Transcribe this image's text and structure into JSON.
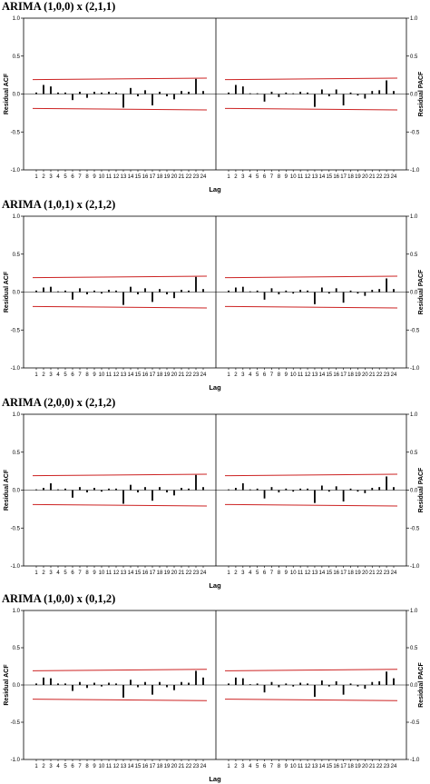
{
  "chart_data": [
    {
      "type": "bar",
      "title": "ARIMA (1,0,0) x (2,1,1)",
      "xlabel": "Lag",
      "ylabel_left": "Residual ACF",
      "ylabel_right": "Residual PACF",
      "ylim": [
        -1.0,
        1.0
      ],
      "yticks": [
        "1.0",
        "0.5",
        "0.0",
        "-0.5",
        "-1.0"
      ],
      "categories": [
        "1",
        "2",
        "3",
        "4",
        "5",
        "6",
        "7",
        "8",
        "9",
        "10",
        "11",
        "12",
        "13",
        "14",
        "15",
        "16",
        "17",
        "18",
        "19",
        "20",
        "21",
        "22",
        "23",
        "24"
      ],
      "series": [
        {
          "values": [
            0.02,
            0.12,
            0.1,
            0.02,
            0.02,
            -0.08,
            0.03,
            -0.05,
            0.03,
            0.02,
            0.03,
            0.02,
            -0.18,
            0.08,
            -0.03,
            0.05,
            -0.15,
            0.03,
            -0.03,
            -0.07,
            0.04,
            0.03,
            0.2,
            0.04
          ]
        },
        {
          "values": [
            0.02,
            0.12,
            0.1,
            0.01,
            0.01,
            -0.1,
            0.03,
            -0.04,
            0.02,
            0.01,
            0.03,
            0.02,
            -0.17,
            0.06,
            -0.03,
            0.06,
            -0.15,
            0.02,
            -0.02,
            -0.06,
            0.04,
            0.05,
            0.18,
            0.04
          ]
        }
      ],
      "confidence_upper": [
        0.19,
        0.21
      ],
      "confidence_lower": [
        -0.19,
        -0.21
      ]
    },
    {
      "type": "bar",
      "title": "ARIMA (1,0,1) x (2,1,2)",
      "xlabel": "Lag",
      "ylabel_left": "Residual ACF",
      "ylabel_right": "Residual PACF",
      "ylim": [
        -1.0,
        1.0
      ],
      "yticks": [
        "1.0",
        "0.5",
        "0.0",
        "-0.5",
        "-1.0"
      ],
      "categories": [
        "1",
        "2",
        "3",
        "4",
        "5",
        "6",
        "7",
        "8",
        "9",
        "10",
        "11",
        "12",
        "13",
        "14",
        "15",
        "16",
        "17",
        "18",
        "19",
        "20",
        "21",
        "22",
        "23",
        "24"
      ],
      "series": [
        {
          "values": [
            0.02,
            0.06,
            0.07,
            0.01,
            0.02,
            -0.1,
            0.05,
            -0.03,
            0.02,
            -0.02,
            0.03,
            0.02,
            -0.17,
            0.07,
            -0.03,
            0.05,
            -0.13,
            0.04,
            -0.03,
            -0.08,
            0.03,
            0.02,
            0.2,
            0.04
          ]
        },
        {
          "values": [
            0.02,
            0.06,
            0.07,
            0.01,
            0.02,
            -0.1,
            0.05,
            -0.03,
            0.02,
            -0.02,
            0.03,
            0.02,
            -0.16,
            0.06,
            -0.02,
            0.05,
            -0.14,
            0.02,
            -0.02,
            -0.05,
            0.03,
            0.04,
            0.18,
            0.04
          ]
        }
      ],
      "confidence_upper": [
        0.19,
        0.21
      ],
      "confidence_lower": [
        -0.19,
        -0.21
      ]
    },
    {
      "type": "bar",
      "title": "ARIMA (2,0,0) x (2,1,2)",
      "xlabel": "Lag",
      "ylabel_left": "Residual ACF",
      "ylabel_right": "Residual PACF",
      "ylim": [
        -1.0,
        1.0
      ],
      "yticks": [
        "1.0",
        "0.5",
        "0.0",
        "-0.5",
        "-1.0"
      ],
      "categories": [
        "1",
        "2",
        "3",
        "4",
        "5",
        "6",
        "7",
        "8",
        "9",
        "10",
        "11",
        "12",
        "13",
        "14",
        "15",
        "16",
        "17",
        "18",
        "19",
        "20",
        "21",
        "22",
        "23",
        "24"
      ],
      "series": [
        {
          "values": [
            0.01,
            0.03,
            0.09,
            0.01,
            0.02,
            -0.1,
            0.04,
            -0.03,
            0.03,
            -0.02,
            0.02,
            0.02,
            -0.18,
            0.07,
            -0.03,
            0.04,
            -0.14,
            0.04,
            -0.03,
            -0.07,
            0.03,
            0.02,
            0.2,
            0.04
          ]
        },
        {
          "values": [
            0.01,
            0.03,
            0.09,
            0.01,
            0.02,
            -0.11,
            0.04,
            -0.03,
            0.02,
            -0.02,
            0.02,
            0.02,
            -0.17,
            0.06,
            -0.02,
            0.05,
            -0.15,
            0.02,
            -0.02,
            -0.04,
            0.03,
            0.04,
            0.18,
            0.04
          ]
        }
      ],
      "confidence_upper": [
        0.19,
        0.21
      ],
      "confidence_lower": [
        -0.19,
        -0.21
      ]
    },
    {
      "type": "bar",
      "title": "ARIMA (1,0,0) x (0,1,2)",
      "xlabel": "Lag",
      "ylabel_left": "Residual ACF",
      "ylabel_right": "Residual PACF",
      "ylim": [
        -1.0,
        1.0
      ],
      "yticks": [
        "1.0",
        "0.5",
        "0.0",
        "-0.5",
        "-1.0"
      ],
      "categories": [
        "1",
        "2",
        "3",
        "4",
        "5",
        "6",
        "7",
        "8",
        "9",
        "10",
        "11",
        "12",
        "13",
        "14",
        "15",
        "16",
        "17",
        "18",
        "19",
        "20",
        "21",
        "22",
        "23",
        "24"
      ],
      "series": [
        {
          "values": [
            0.02,
            0.1,
            0.09,
            0.02,
            0.02,
            -0.08,
            0.04,
            -0.04,
            0.03,
            -0.02,
            0.03,
            0.02,
            -0.17,
            0.07,
            -0.03,
            0.04,
            -0.13,
            0.04,
            -0.03,
            -0.07,
            0.04,
            0.03,
            0.19,
            0.1
          ]
        },
        {
          "values": [
            0.02,
            0.1,
            0.09,
            0.01,
            0.02,
            -0.1,
            0.04,
            -0.03,
            0.02,
            -0.02,
            0.03,
            0.02,
            -0.16,
            0.06,
            -0.02,
            0.05,
            -0.13,
            0.02,
            -0.02,
            -0.05,
            0.04,
            0.05,
            0.18,
            0.09
          ]
        }
      ],
      "confidence_upper": [
        0.19,
        0.21
      ],
      "confidence_lower": [
        -0.19,
        -0.21
      ]
    }
  ]
}
